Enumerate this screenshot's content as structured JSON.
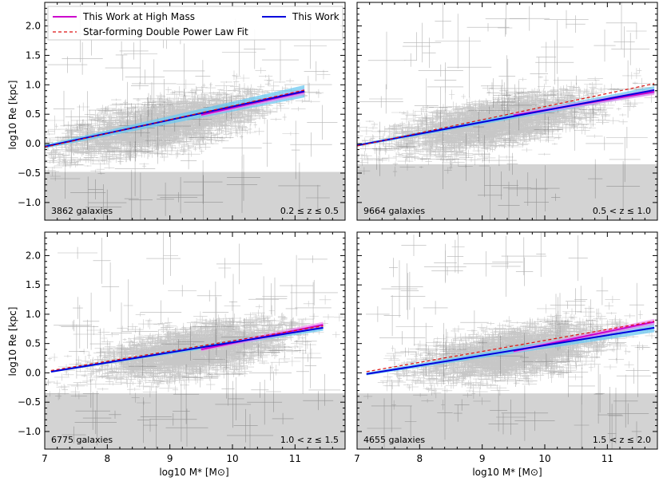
{
  "chart_data": {
    "type": "scatter",
    "xlabel": "log10 M* [M⊙]",
    "ylabel": "log10 Re [kpc]",
    "legend": {
      "location": "top-left of first panel",
      "entries": [
        {
          "label": "This Work at High Mass",
          "color": "#cc00cc",
          "style": "solid"
        },
        {
          "label": "This Work",
          "color": "#0000dd",
          "style": "solid"
        },
        {
          "label": "Star-forming Double Power Law Fit",
          "color": "#dd1111",
          "style": "dashed"
        }
      ]
    },
    "xlim": [
      7.0,
      11.8
    ],
    "ylim": [
      -1.3,
      2.4
    ],
    "xticks": [
      7,
      8,
      9,
      10,
      11
    ],
    "yticks": [
      -1.0,
      -0.5,
      0.0,
      0.5,
      1.0,
      1.5,
      2.0
    ],
    "xtick_labels": [
      "7",
      "8",
      "9",
      "10",
      "11"
    ],
    "ytick_labels": [
      "−1.0",
      "−0.5",
      "0.0",
      "0.5",
      "1.0",
      "1.5",
      "2.0"
    ],
    "colors": {
      "points": "#000000",
      "this_work": "#0000dd",
      "high_mass": "#cc00cc",
      "double_power_law": "#dd1111",
      "band_blue": "#6cc8f0",
      "band_magenta": "#ee88ee",
      "shaded_region": "#d3d3d3"
    },
    "panels": [
      {
        "redshift_label": "0.2 ≤ z ≤ 0.5",
        "count_label": "3862 galaxies",
        "n_points": 3862,
        "shaded_below": -0.48,
        "this_work": {
          "x": [
            7.0,
            11.15
          ],
          "y": [
            -0.05,
            0.89
          ]
        },
        "this_work_band_halfwidth": 0.08,
        "high_mass": {
          "x": [
            9.5,
            11.15
          ],
          "y": [
            0.49,
            0.88
          ]
        },
        "double_power_law": {
          "x": [
            7.0,
            11.15
          ],
          "y": [
            -0.06,
            0.91
          ]
        },
        "cloud": {
          "x_center": 8.9,
          "y_center": 0.32,
          "x_spread": 0.85,
          "slope": 0.23
        }
      },
      {
        "redshift_label": "0.5 < z ≤ 1.0",
        "count_label": "9664 galaxies",
        "n_points": 9664,
        "shaded_below": -0.35,
        "this_work": {
          "x": [
            7.0,
            11.75
          ],
          "y": [
            -0.03,
            0.91
          ]
        },
        "this_work_band_halfwidth": 0.05,
        "high_mass": {
          "x": [
            9.5,
            11.75
          ],
          "y": [
            0.48,
            0.88
          ]
        },
        "double_power_law": {
          "x": [
            7.0,
            11.75
          ],
          "y": [
            -0.04,
            1.02
          ]
        },
        "cloud": {
          "x_center": 9.2,
          "y_center": 0.35,
          "x_spread": 0.8,
          "slope": 0.2
        }
      },
      {
        "redshift_label": "1.0 < z ≤ 1.5",
        "count_label": "6775 galaxies",
        "n_points": 6775,
        "shaded_below": -0.35,
        "this_work": {
          "x": [
            7.1,
            11.45
          ],
          "y": [
            0.02,
            0.77
          ]
        },
        "this_work_band_halfwidth": 0.04,
        "high_mass": {
          "x": [
            9.5,
            11.45
          ],
          "y": [
            0.4,
            0.82
          ]
        },
        "double_power_law": {
          "x": [
            7.1,
            11.45
          ],
          "y": [
            0.04,
            0.8
          ]
        },
        "cloud": {
          "x_center": 9.4,
          "y_center": 0.38,
          "x_spread": 0.75,
          "slope": 0.18
        }
      },
      {
        "redshift_label": "1.5 < z ≤ 2.0",
        "count_label": "4655 galaxies",
        "n_points": 4655,
        "shaded_below": -0.35,
        "this_work": {
          "x": [
            7.15,
            11.75
          ],
          "y": [
            -0.02,
            0.77
          ]
        },
        "this_work_band_halfwidth": 0.06,
        "high_mass": {
          "x": [
            9.5,
            11.75
          ],
          "y": [
            0.37,
            0.87
          ]
        },
        "double_power_law": {
          "x": [
            7.15,
            11.75
          ],
          "y": [
            0.02,
            0.88
          ]
        },
        "cloud": {
          "x_center": 9.5,
          "y_center": 0.35,
          "x_spread": 0.75,
          "slope": 0.18
        }
      }
    ]
  }
}
